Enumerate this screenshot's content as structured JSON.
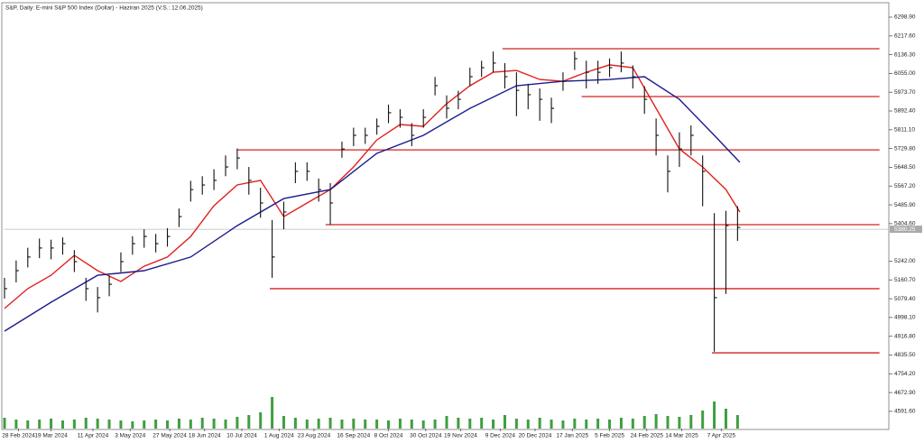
{
  "chart_data": {
    "type": "ohlc",
    "title": "S&P, Daily: E-mini S&P 500 Index (Dollar) - Haziran 2025 (V.S.: 12.06.2025)",
    "x": [
      0,
      5,
      10,
      15,
      20,
      25,
      30,
      35,
      40,
      45,
      50,
      55,
      60,
      65,
      70,
      75,
      80,
      85,
      90,
      95,
      100,
      105,
      110,
      115,
      120,
      125,
      130,
      135,
      140,
      145,
      150,
      155,
      160,
      165,
      170,
      175,
      180,
      185,
      190,
      195,
      200,
      205,
      210,
      215,
      220,
      225,
      230,
      235,
      240,
      245,
      250,
      255,
      260,
      265,
      270,
      275,
      280,
      285,
      290,
      295,
      300,
      305,
      310,
      315
    ],
    "high": [
      5170,
      5245,
      5300,
      5340,
      5335,
      5345,
      5290,
      5170,
      5130,
      5180,
      5280,
      5350,
      5380,
      5360,
      5385,
      5470,
      5590,
      5610,
      5640,
      5700,
      5730,
      5650,
      5560,
      5420,
      5500,
      5670,
      5670,
      5600,
      5580,
      5760,
      5820,
      5820,
      5860,
      5920,
      5900,
      5840,
      5900,
      6040,
      5960,
      5980,
      6080,
      6110,
      6150,
      6100,
      6060,
      6010,
      5990,
      5950,
      6060,
      6150,
      6110,
      6110,
      6120,
      6150,
      6090,
      6000,
      5860,
      5700,
      5800,
      5830,
      5700,
      5450,
      5460,
      5480
    ],
    "low": [
      5080,
      5150,
      5215,
      5255,
      5250,
      5270,
      5195,
      5070,
      5020,
      5090,
      5195,
      5270,
      5300,
      5280,
      5305,
      5390,
      5500,
      5530,
      5550,
      5610,
      5640,
      5530,
      5430,
      5170,
      5380,
      5580,
      5590,
      5500,
      5400,
      5690,
      5740,
      5750,
      5790,
      5840,
      5820,
      5740,
      5820,
      5960,
      5860,
      5900,
      6000,
      6040,
      6060,
      5990,
      5870,
      5900,
      5850,
      5840,
      5980,
      6070,
      5990,
      6010,
      6040,
      6060,
      5990,
      5880,
      5700,
      5540,
      5650,
      5700,
      5480,
      4850,
      5100,
      5330
    ],
    "close": [
      5123,
      5201,
      5260,
      5299,
      5299,
      5318,
      5240,
      5123,
      5084,
      5142,
      5240,
      5318,
      5349,
      5318,
      5349,
      5435,
      5552,
      5572,
      5592,
      5650,
      5689,
      5592,
      5494,
      5260,
      5455,
      5631,
      5631,
      5552,
      5494,
      5728,
      5787,
      5787,
      5826,
      5885,
      5865,
      5787,
      5865,
      6002,
      5904,
      5943,
      6041,
      6080,
      6100,
      6041,
      5982,
      5963,
      5943,
      5904,
      6021,
      6119,
      6060,
      6060,
      6080,
      6100,
      6041,
      5943,
      5787,
      5631,
      5728,
      5787,
      5631,
      5084,
      5396,
      5388
    ],
    "color": "#111111",
    "moving_averages": [
      {
        "color": "#e0201c",
        "x": [
          0,
          10,
          20,
          30,
          40,
          50,
          60,
          70,
          80,
          90,
          100,
          110,
          120,
          130,
          140,
          150,
          160,
          170,
          180,
          190,
          200,
          210,
          220,
          230,
          240,
          250,
          260,
          270,
          280,
          290,
          300,
          310,
          316
        ],
        "values": [
          5037,
          5123,
          5181,
          5267,
          5201,
          5154,
          5220,
          5260,
          5349,
          5482,
          5572,
          5592,
          5435,
          5494,
          5552,
          5650,
          5767,
          5834,
          5826,
          5924,
          6002,
          6060,
          6068,
          6029,
          6021,
          6060,
          6092,
          6080,
          5904,
          5728,
          5650,
          5552,
          5455
        ]
      },
      {
        "color": "#1c1c8c",
        "x": [
          0,
          20,
          40,
          60,
          80,
          100,
          120,
          140,
          160,
          180,
          200,
          220,
          240,
          260,
          275,
          290,
          305,
          316
        ],
        "values": [
          4939,
          5064,
          5181,
          5201,
          5260,
          5396,
          5513,
          5552,
          5709,
          5787,
          5904,
          6002,
          6021,
          6029,
          6041,
          5943,
          5787,
          5670
        ]
      }
    ],
    "levels": [
      {
        "value": 6162,
        "x": [
          214,
          376
        ]
      },
      {
        "value": 5955,
        "x": [
          248,
          376
        ]
      },
      {
        "value": 5724,
        "x": [
          100,
          376
        ]
      },
      {
        "value": 5400,
        "x": [
          138,
          376
        ]
      },
      {
        "value": 5123,
        "x": [
          114,
          376
        ]
      },
      {
        "value": 4845,
        "x": [
          304,
          376
        ]
      }
    ],
    "level_color": "#d42020",
    "current_price": 5380.25,
    "volume": {
      "color": "#3f9e3f",
      "axis": "y2",
      "values": [
        12,
        10,
        9,
        10,
        11,
        9,
        10,
        12,
        11,
        10,
        9,
        8,
        9,
        10,
        9,
        11,
        10,
        12,
        11,
        10,
        13,
        15,
        18,
        35,
        14,
        12,
        10,
        11,
        12,
        10,
        11,
        10,
        10,
        9,
        11,
        10,
        9,
        10,
        14,
        12,
        11,
        12,
        10,
        15,
        11,
        10,
        12,
        10,
        9,
        11,
        10,
        11,
        10,
        12,
        11,
        14,
        16,
        14,
        13,
        15,
        20,
        30,
        22,
        15
      ]
    },
    "xlim": [
      0,
      380
    ],
    "ylim": [
      4517,
      6353.6
    ],
    "y2lim": [
      0,
      100
    ],
    "xticks": [
      {
        "value": 6,
        "label": "28 Feb 2024"
      },
      {
        "value": 20,
        "label": "19 Mar 2024"
      },
      {
        "value": 38,
        "label": "11 Apr 2024"
      },
      {
        "value": 54,
        "label": "3 May 2024"
      },
      {
        "value": 71,
        "label": "27 May 2024"
      },
      {
        "value": 86,
        "label": "18 Jun 2024"
      },
      {
        "value": 102,
        "label": "10 Jul 2024"
      },
      {
        "value": 118,
        "label": "1 Aug 2024"
      },
      {
        "value": 133,
        "label": "23 Aug 2024"
      },
      {
        "value": 150,
        "label": "16 Sep 2024"
      },
      {
        "value": 165,
        "label": "8 Oct 2024"
      },
      {
        "value": 181,
        "label": "30 Oct 2024"
      },
      {
        "value": 196,
        "label": "19 Nov 2024"
      },
      {
        "value": 213,
        "label": "9 Dec 2024"
      },
      {
        "value": 228,
        "label": "20 Dec 2024"
      },
      {
        "value": 244,
        "label": "17 Jan 2025"
      },
      {
        "value": 260,
        "label": "5 Feb 2025"
      },
      {
        "value": 276,
        "label": "24 Feb 2025"
      },
      {
        "value": 291,
        "label": "14 Mar 2025"
      },
      {
        "value": 308,
        "label": "7 Apr 2025"
      }
    ],
    "yticks": [
      {
        "value": 6298.9,
        "label": "6298.90"
      },
      {
        "value": 6217.6,
        "label": "6217.60"
      },
      {
        "value": 6136.3,
        "label": "6136.30"
      },
      {
        "value": 6055,
        "label": "6055.00"
      },
      {
        "value": 5973.7,
        "label": "5973.70"
      },
      {
        "value": 5892.4,
        "label": "5892.40"
      },
      {
        "value": 5811.1,
        "label": "5811.10"
      },
      {
        "value": 5729.8,
        "label": "5729.80"
      },
      {
        "value": 5648.5,
        "label": "5648.50"
      },
      {
        "value": 5567.2,
        "label": "5567.20"
      },
      {
        "value": 5485.9,
        "label": "5485.90"
      },
      {
        "value": 5404.6,
        "label": "5404.60"
      },
      {
        "value": 5242,
        "label": "5242.00"
      },
      {
        "value": 5160.7,
        "label": "5160.70"
      },
      {
        "value": 5079.4,
        "label": "5079.40"
      },
      {
        "value": 4998.1,
        "label": "4998.10"
      },
      {
        "value": 4916.8,
        "label": "4916.80"
      },
      {
        "value": 4835.5,
        "label": "4835.50"
      },
      {
        "value": 4754.2,
        "label": "4754.20"
      },
      {
        "value": 4672.9,
        "label": "4672.90"
      },
      {
        "value": 4591.6,
        "label": "4591.60"
      }
    ]
  }
}
